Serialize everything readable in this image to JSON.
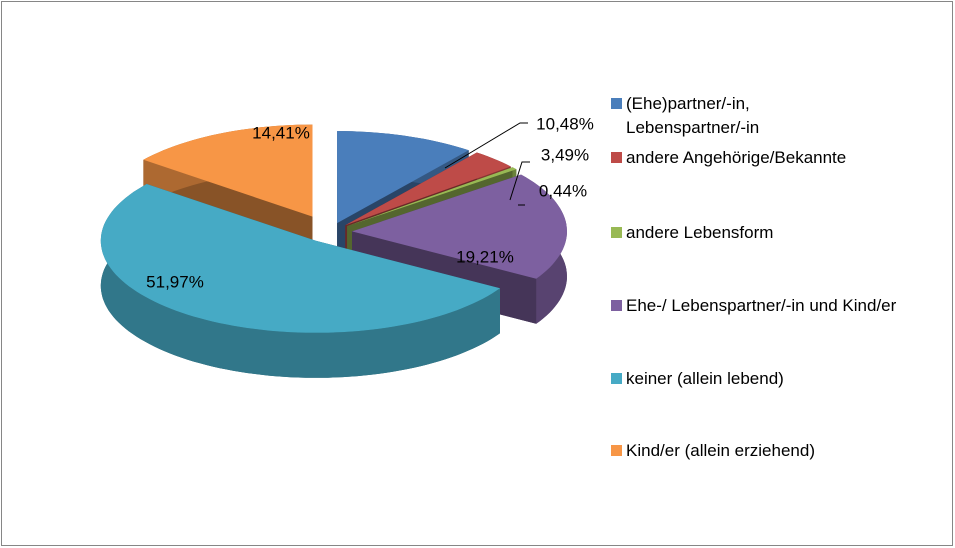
{
  "chart_data": {
    "type": "pie",
    "categories": [
      "(Ehe)partner/-in, Lebenspartner/-in",
      "andere Angehörige/Bekannte",
      "andere Lebensform",
      "Ehe-/ Lebenspartner/-in und Kind/er",
      "keiner (allein lebend)",
      "Kind/er (allein erziehend)"
    ],
    "values": [
      10.48,
      3.49,
      0.44,
      19.21,
      51.97,
      14.41
    ],
    "value_labels": [
      "10,48%",
      "3,49%",
      "0,44%",
      "19,21%",
      "51,97%",
      "14,41%"
    ],
    "colors": [
      "#4a7ebb",
      "#be4b48",
      "#98b954",
      "#7d60a0",
      "#46aac5",
      "#f79646"
    ],
    "legend": "right"
  }
}
